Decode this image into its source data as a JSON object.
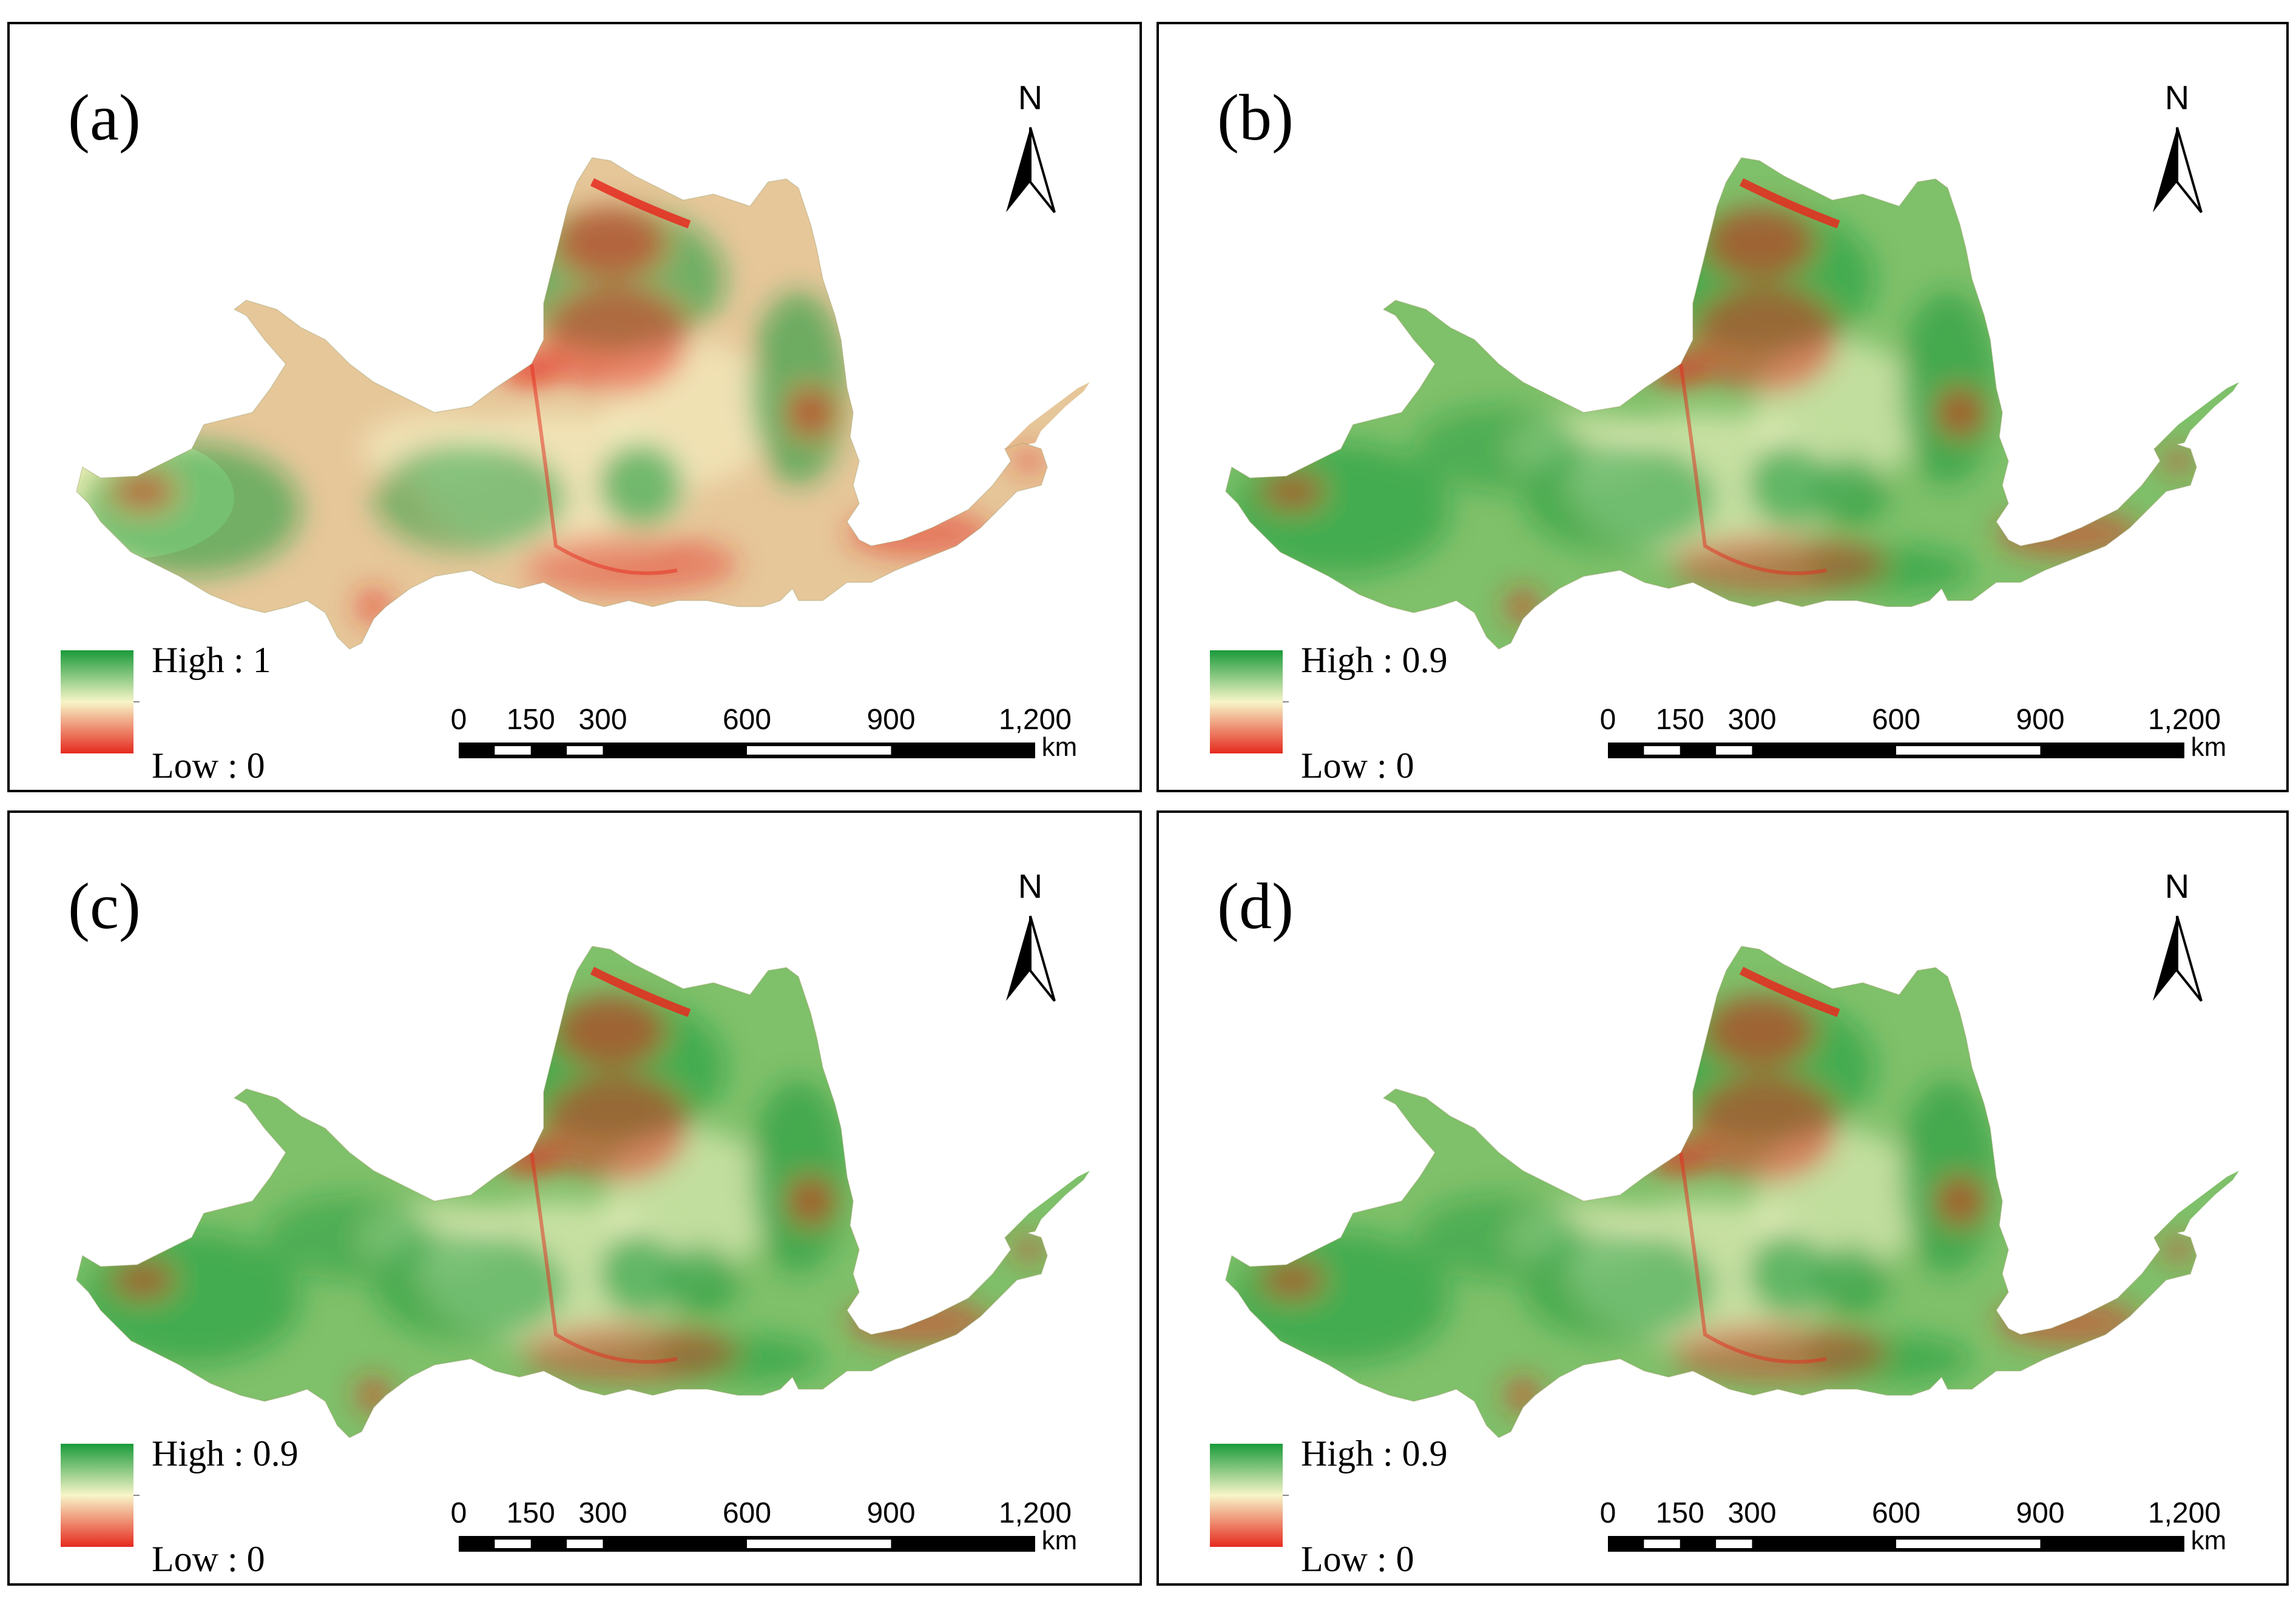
{
  "colors": {
    "low": "#e52a1e",
    "mid": "#f7f5c8",
    "high": "#1a9a3a"
  },
  "north_label": "N",
  "scale_bar": {
    "ticks": [
      "0",
      "150",
      "300",
      "600",
      "900",
      "1,200"
    ],
    "unit": "km"
  },
  "panels": [
    {
      "label": "(a)",
      "legend_high": "High : 1",
      "legend_low": "Low : 0"
    },
    {
      "label": "(b)",
      "legend_high": "High : 0.9",
      "legend_low": "Low : 0"
    },
    {
      "label": "(c)",
      "legend_high": "High : 0.9",
      "legend_low": "Low : 0"
    },
    {
      "label": "(d)",
      "legend_high": "High : 0.9",
      "legend_low": "Low : 0"
    }
  ]
}
